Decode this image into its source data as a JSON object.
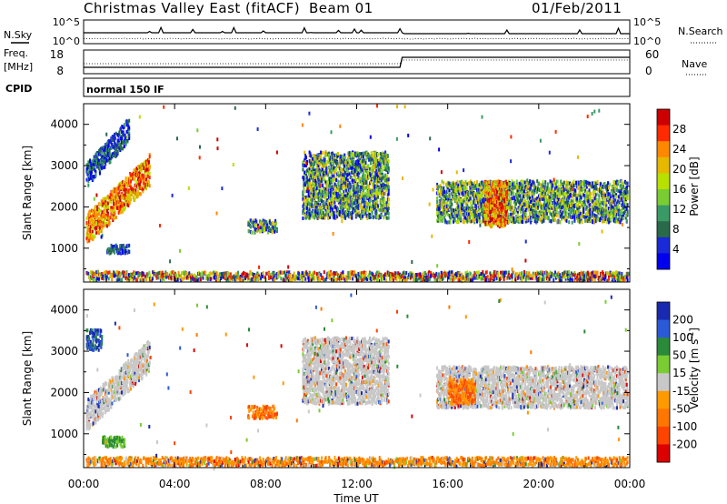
{
  "header": {
    "radar": "Christmas Valley East (fitACF)",
    "beam": "Beam 01",
    "date": "01/Feb/2011"
  },
  "params": {
    "nsky_label": "N.Sky",
    "nsearch_label": "N.Search",
    "freq_label_line1": "Freq.",
    "freq_label_line2": "[MHz]",
    "nave_label": "Nave",
    "cpid_label": "CPID",
    "cpid_text": "normal 150 IF",
    "noise_left_ticks": [
      "10^5",
      "10^0"
    ],
    "noise_right_ticks": [
      "10^5",
      "10^0"
    ],
    "freq_left_ticks": [
      "18",
      "8"
    ],
    "nave_right_ticks": [
      "60",
      "0"
    ]
  },
  "chart_data": [
    {
      "type": "heatmap",
      "ylabel": "Slant Range [km]",
      "ylim": [
        180,
        4500
      ],
      "xlim_hours": [
        0,
        24
      ],
      "yticks": [
        1000,
        2000,
        3000,
        4000
      ],
      "colorbar": {
        "label": "Power [dB]",
        "ticks": [
          "28",
          "24",
          "20",
          "16",
          "12",
          "8",
          "4"
        ],
        "colors": [
          "#cc0000",
          "#ff2a00",
          "#ff8800",
          "#e6b800",
          "#b8e000",
          "#7acc33",
          "#3a9a66",
          "#2a6a4a",
          "#1a2ad8",
          "#0000ee"
        ]
      },
      "regions": [
        {
          "t": [
            0.1,
            2.9
          ],
          "r": [
            1100,
            3200
          ],
          "level": "high",
          "shape": "rising-band"
        },
        {
          "t": [
            0.1,
            2.0
          ],
          "r": [
            2500,
            4100
          ],
          "level": "low",
          "shape": "rising-band"
        },
        {
          "t": [
            1.0,
            2.0
          ],
          "r": [
            850,
            1050
          ],
          "level": "low",
          "shape": "patch"
        },
        {
          "t": [
            7.2,
            8.5
          ],
          "r": [
            1350,
            1650
          ],
          "level": "mid",
          "shape": "patch"
        },
        {
          "t": [
            9.6,
            13.4
          ],
          "r": [
            1700,
            3300
          ],
          "level": "mid",
          "shape": "patch"
        },
        {
          "t": [
            15.5,
            23.9
          ],
          "r": [
            1600,
            2600
          ],
          "level": "mid",
          "shape": "band"
        },
        {
          "t": [
            17.6,
            18.6
          ],
          "r": [
            1500,
            2600
          ],
          "level": "high",
          "shape": "patch"
        },
        {
          "t": [
            0.1,
            23.9
          ],
          "r": [
            200,
            400
          ],
          "level": "mixed",
          "shape": "ground-band"
        }
      ]
    },
    {
      "type": "heatmap",
      "ylabel": "Slant Range [km]",
      "xlabel": "Time UT",
      "ylim": [
        180,
        4500
      ],
      "xlim_hours": [
        0,
        24
      ],
      "yticks": [
        1000,
        2000,
        3000,
        4000
      ],
      "xticks": [
        "00:00",
        "04:00",
        "08:00",
        "12:00",
        "16:00",
        "20:00",
        "00:00"
      ],
      "colorbar": {
        "label": "Velocity [m s",
        "label_sup": "-1",
        "label_end": "]",
        "ticks": [
          "200",
          "100",
          "50",
          "15",
          "-15",
          "-50",
          "-100",
          "-200"
        ],
        "colors": [
          "#1a2ab0",
          "#2a5ad8",
          "#2a8a3a",
          "#7acc33",
          "#c8c8c8",
          "#ff9900",
          "#ff7700",
          "#ff4400",
          "#dd0000"
        ]
      },
      "regions": [
        {
          "t": [
            0.1,
            2.9
          ],
          "r": [
            1100,
            3200
          ],
          "level": "gray",
          "shape": "rising-band"
        },
        {
          "t": [
            0.1,
            0.8
          ],
          "r": [
            3000,
            3500
          ],
          "level": "positive",
          "shape": "patch"
        },
        {
          "t": [
            0.8,
            1.8
          ],
          "r": [
            650,
            900
          ],
          "level": "lowpos",
          "shape": "patch"
        },
        {
          "t": [
            7.2,
            8.5
          ],
          "r": [
            1350,
            1650
          ],
          "level": "negative",
          "shape": "patch"
        },
        {
          "t": [
            9.6,
            13.4
          ],
          "r": [
            1700,
            3300
          ],
          "level": "gray",
          "shape": "patch"
        },
        {
          "t": [
            15.5,
            23.9
          ],
          "r": [
            1600,
            2600
          ],
          "level": "gray",
          "shape": "band"
        },
        {
          "t": [
            16.0,
            17.2
          ],
          "r": [
            1700,
            2300
          ],
          "level": "negative",
          "shape": "patch"
        },
        {
          "t": [
            0.1,
            23.9
          ],
          "r": [
            200,
            400
          ],
          "level": "ground",
          "shape": "ground-band"
        }
      ]
    }
  ]
}
